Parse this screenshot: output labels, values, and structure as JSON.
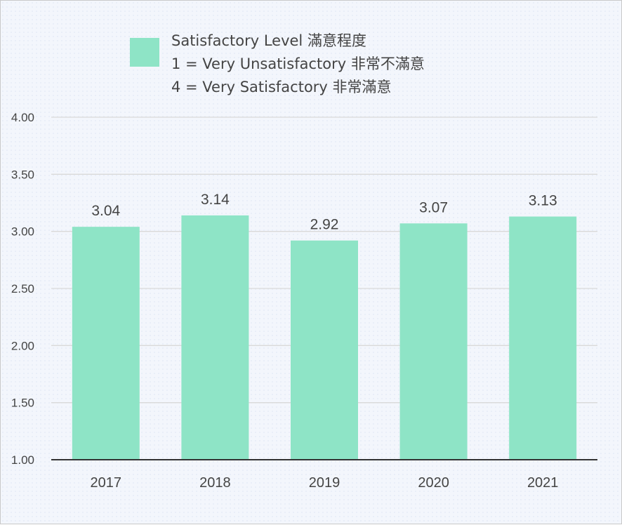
{
  "chart_data": {
    "type": "bar",
    "title": "",
    "xlabel": "",
    "ylabel": "",
    "categories": [
      "2017",
      "2018",
      "2019",
      "2020",
      "2021"
    ],
    "series": [
      {
        "name": "Satisfactory Level 滿意程度",
        "values": [
          3.04,
          3.14,
          2.92,
          3.07,
          3.13
        ],
        "color": "#8ee4c6"
      }
    ],
    "legend_lines": [
      "Satisfactory Level 滿意程度",
      "1 = Very Unsatisfactory 非常不滿意",
      "4 = Very Satisfactory 非常滿意"
    ],
    "ylim": [
      1.0,
      4.0
    ],
    "yticks": [
      "1.00",
      "1.50",
      "2.00",
      "2.50",
      "3.00",
      "3.50",
      "4.00"
    ],
    "data_labels": [
      "3.04",
      "3.14",
      "2.92",
      "3.07",
      "3.13"
    ],
    "grid": true,
    "legend_position": "top"
  }
}
